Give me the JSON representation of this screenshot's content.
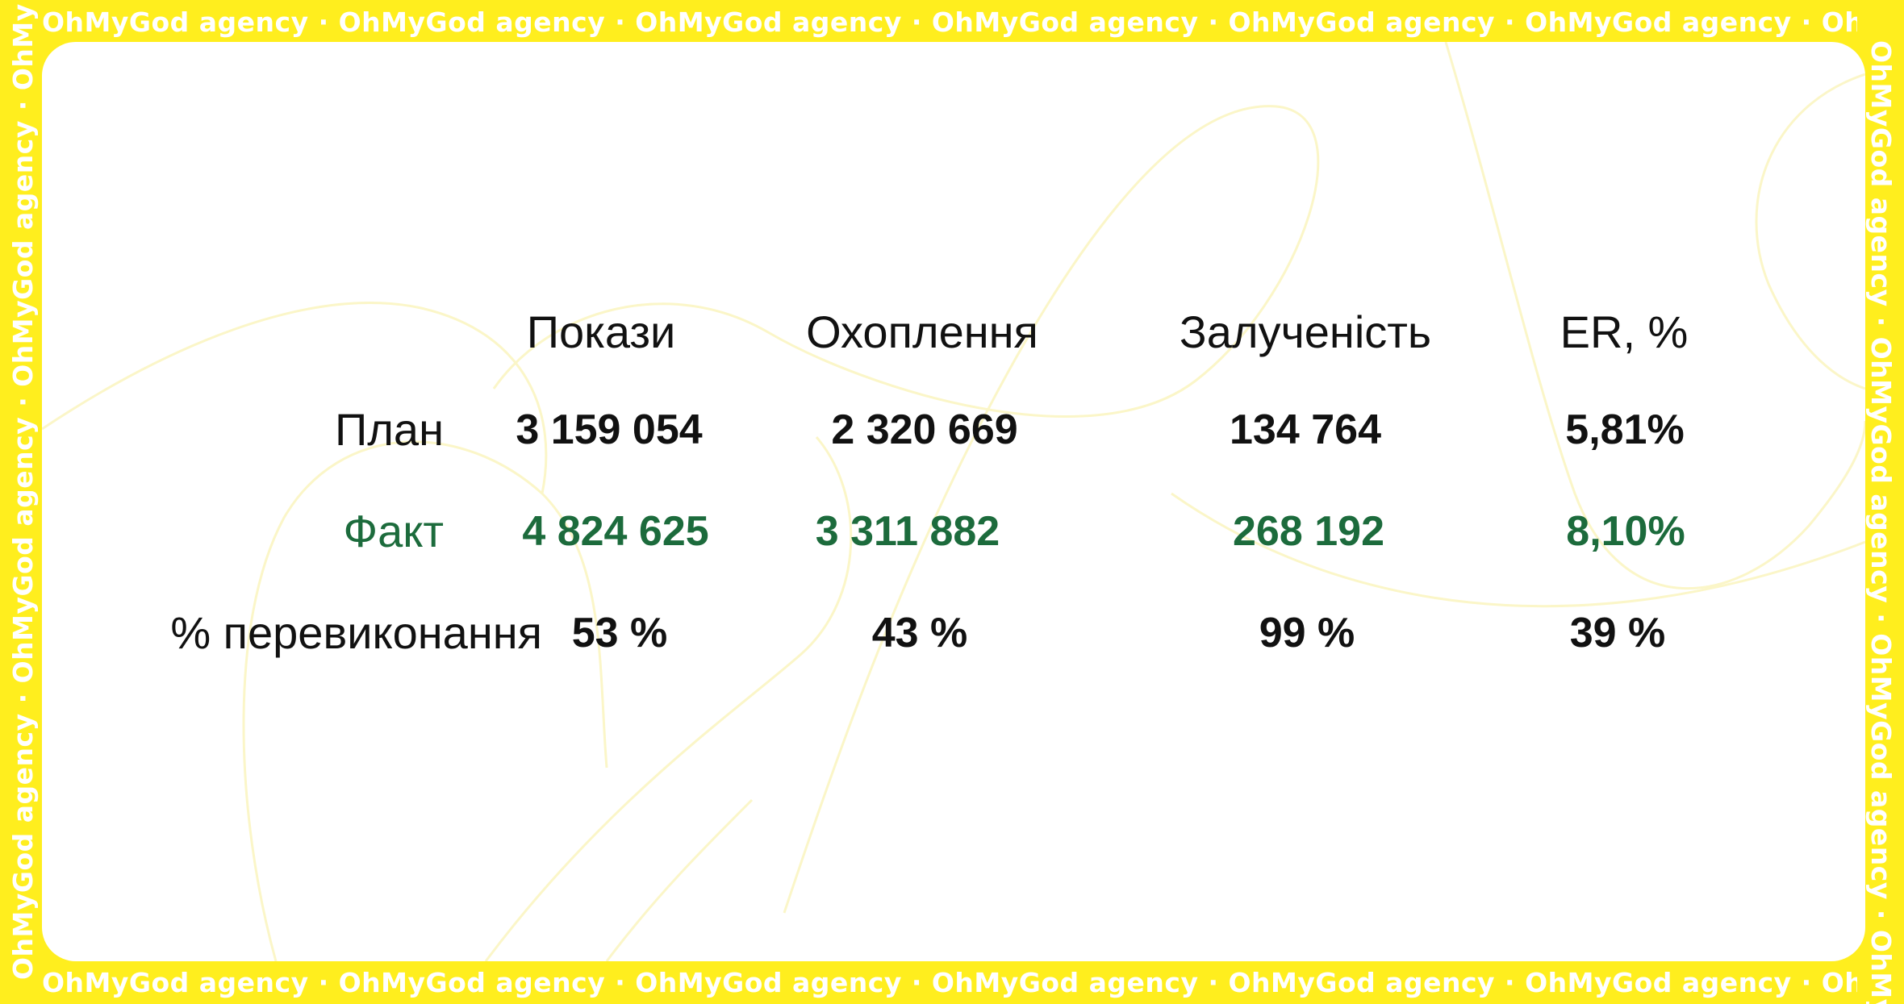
{
  "frame": {
    "repeat_text": "OhMyGod agency · OhMyGod agency · OhMyGod agency · OhMyGod agency · OhMyGod agency · OhMyGod agency · OhMyGod agency · OhMyGod agency · OhMy",
    "vertical_text": "OhMyGod agency · OhMyGod agency · OhMyGod agency · OhMy"
  },
  "table": {
    "columns": [
      "Покази",
      "Охоплення",
      "Залученість",
      "ER, %"
    ],
    "rows": [
      {
        "label": "План",
        "values": [
          "3 159 054",
          "2 320 669",
          "134 764",
          "5,81%"
        ]
      },
      {
        "label": "Факт",
        "values": [
          "4 824 625",
          "3 311 882",
          "268 192",
          "8,10%"
        ]
      },
      {
        "label": "% перевиконання",
        "values": [
          "53 %",
          "43 %",
          "99 %",
          "39 %"
        ]
      }
    ]
  },
  "colors": {
    "frame": "#FFEE1E",
    "fact_green": "#1C6B3C",
    "text": "#111111"
  }
}
